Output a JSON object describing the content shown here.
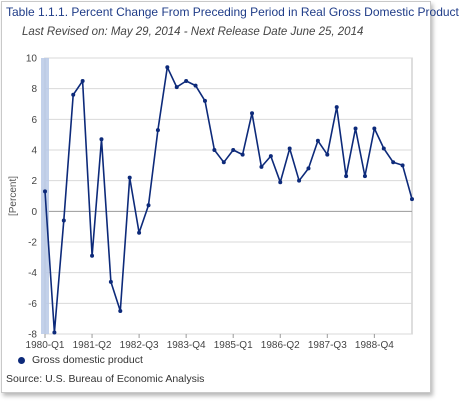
{
  "header": {
    "title": "Table 1.1.1. Percent Change From Preceding Period in Real Gross Domestic Product",
    "subtitle": "Last Revised on: May 29, 2014 - Next Release Date June 25, 2014"
  },
  "source": "Source: U.S. Bureau of Economic Analysis",
  "colors": {
    "series": "#0d2a7a",
    "highlight": "#b8c9e6",
    "grid": "#d9d9d9"
  },
  "chart_data": {
    "type": "line",
    "title": "Table 1.1.1. Percent Change From Preceding Period in Real Gross Domestic Product",
    "ylabel": "[Percent]",
    "xlabel": "",
    "ylim": [
      -8,
      10
    ],
    "yticks": [
      -8,
      -6,
      -4,
      -2,
      0,
      2,
      4,
      6,
      8,
      10
    ],
    "grid": true,
    "legend": "bottom-left",
    "x_tick_labels": [
      {
        "index": 0,
        "label": "1980-Q1"
      },
      {
        "index": 5,
        "label": "1981-Q2"
      },
      {
        "index": 10,
        "label": "1982-Q3"
      },
      {
        "index": 15,
        "label": "1983-Q4"
      },
      {
        "index": 20,
        "label": "1985-Q1"
      },
      {
        "index": 25,
        "label": "1986-Q2"
      },
      {
        "index": 30,
        "label": "1987-Q3"
      },
      {
        "index": 35,
        "label": "1988-Q4"
      }
    ],
    "series": [
      {
        "name": "Gross domestic product",
        "values": [
          1.3,
          -7.9,
          -0.6,
          7.6,
          8.5,
          -2.9,
          4.7,
          -4.6,
          -6.5,
          2.2,
          -1.4,
          0.4,
          5.3,
          9.4,
          8.1,
          8.5,
          8.2,
          7.2,
          4.0,
          3.2,
          4.0,
          3.7,
          6.4,
          2.9,
          3.6,
          1.9,
          4.1,
          2.0,
          2.8,
          4.6,
          3.7,
          6.8,
          2.3,
          5.4,
          2.3,
          5.4,
          4.1,
          3.2,
          3.0,
          0.8
        ]
      }
    ]
  }
}
